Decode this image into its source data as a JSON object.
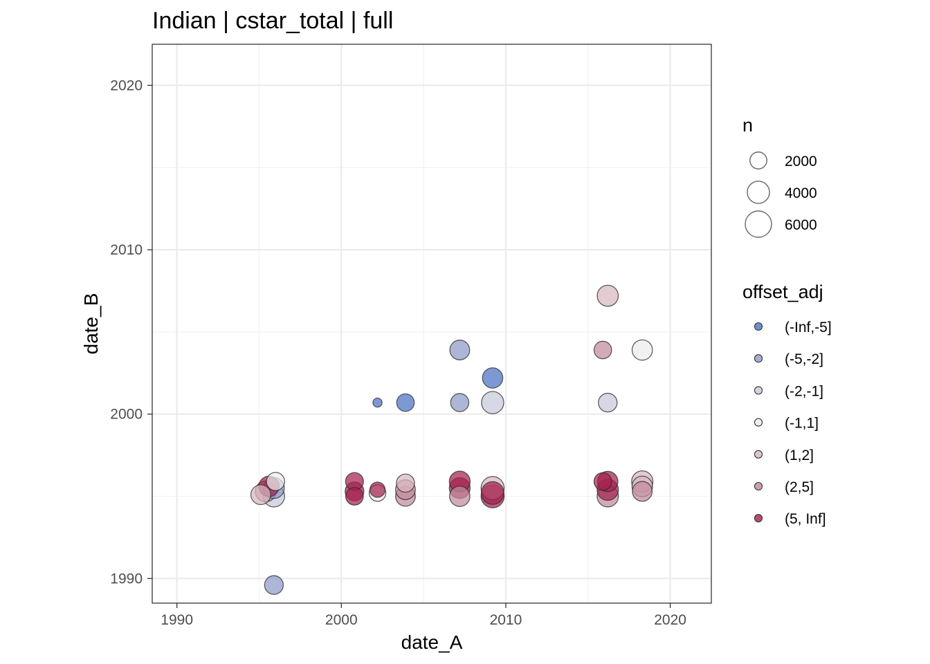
{
  "chart_data": {
    "type": "scatter",
    "title": "Indian | cstar_total | full",
    "xlabel": "date_A",
    "ylabel": "date_B",
    "xlim": [
      1988.5,
      2022.5
    ],
    "ylim": [
      1988.5,
      2022.5
    ],
    "x_ticks": [
      1990,
      2000,
      2010,
      2020
    ],
    "y_ticks": [
      1990,
      2000,
      2010,
      2020
    ],
    "x_tick_labels": [
      "1990",
      "2000",
      "2010",
      "2020"
    ],
    "y_tick_labels": [
      "1990",
      "2000",
      "2010",
      "2020"
    ],
    "grid": true,
    "legend_placement": "right",
    "size_legend": {
      "title": "n",
      "entries": [
        {
          "label": "2000",
          "value": 2000
        },
        {
          "label": "4000",
          "value": 4000
        },
        {
          "label": "6000",
          "value": 6000
        }
      ]
    },
    "color_legend": {
      "title": "offset_adj",
      "entries": [
        {
          "label": "(-Inf,-5]",
          "color": "#4b72c3"
        },
        {
          "label": "(-5,-2]",
          "color": "#8f9ac7"
        },
        {
          "label": "(-2,-1]",
          "color": "#c6cadb"
        },
        {
          "label": "(-1,1]",
          "color": "#ebebeb"
        },
        {
          "label": "(1,2]",
          "color": "#d8b7c0"
        },
        {
          "label": "(2,5]",
          "color": "#c28a9c"
        },
        {
          "label": "(5, Inf]",
          "color": "#a3214f"
        }
      ]
    },
    "points": [
      {
        "x": 1995.1,
        "y": 1995.1,
        "n": 3000,
        "cls": "(1,2]"
      },
      {
        "x": 1995.4,
        "y": 1995.3,
        "n": 3400,
        "cls": "(2,5]"
      },
      {
        "x": 1995.6,
        "y": 1995.6,
        "n": 3200,
        "cls": "(5, Inf]"
      },
      {
        "x": 1995.9,
        "y": 1995.0,
        "n": 3600,
        "cls": "(-2,-1]"
      },
      {
        "x": 1995.9,
        "y": 1995.5,
        "n": 3400,
        "cls": "(-5,-2]"
      },
      {
        "x": 1996.0,
        "y": 1995.9,
        "n": 2400,
        "cls": "(-1,1]"
      },
      {
        "x": 1995.9,
        "y": 1989.6,
        "n": 2600,
        "cls": "(-5,-2]"
      },
      {
        "x": 2000.8,
        "y": 1995.0,
        "n": 2200,
        "cls": "(5, Inf]"
      },
      {
        "x": 2000.8,
        "y": 1995.3,
        "n": 2600,
        "cls": "(5, Inf]"
      },
      {
        "x": 2000.8,
        "y": 1995.9,
        "n": 2300,
        "cls": "(5, Inf]"
      },
      {
        "x": 2002.2,
        "y": 1995.2,
        "n": 1900,
        "cls": "(-1,1]"
      },
      {
        "x": 2002.2,
        "y": 1995.4,
        "n": 1500,
        "cls": "(5, Inf]"
      },
      {
        "x": 2002.2,
        "y": 2000.7,
        "n": 300,
        "cls": "(-Inf,-5]"
      },
      {
        "x": 2003.9,
        "y": 1995.0,
        "n": 3000,
        "cls": "(2,5]"
      },
      {
        "x": 2003.9,
        "y": 1995.4,
        "n": 3000,
        "cls": "(2,5]"
      },
      {
        "x": 2003.9,
        "y": 1995.8,
        "n": 2400,
        "cls": "(1,2]"
      },
      {
        "x": 2003.9,
        "y": 2000.7,
        "n": 2200,
        "cls": "(-Inf,-5]"
      },
      {
        "x": 2007.2,
        "y": 1995.0,
        "n": 3200,
        "cls": "(2,5]"
      },
      {
        "x": 2007.2,
        "y": 1995.5,
        "n": 3400,
        "cls": "(5, Inf]"
      },
      {
        "x": 2007.2,
        "y": 1995.9,
        "n": 3400,
        "cls": "(5, Inf]"
      },
      {
        "x": 2007.2,
        "y": 2000.7,
        "n": 2400,
        "cls": "(-5,-2]"
      },
      {
        "x": 2007.2,
        "y": 2003.9,
        "n": 3000,
        "cls": "(-5,-2]"
      },
      {
        "x": 2009.2,
        "y": 1995.0,
        "n": 4400,
        "cls": "(5, Inf]"
      },
      {
        "x": 2009.2,
        "y": 1995.5,
        "n": 4400,
        "cls": "(1,2]"
      },
      {
        "x": 2009.2,
        "y": 1995.2,
        "n": 4200,
        "cls": "(5, Inf]"
      },
      {
        "x": 2009.2,
        "y": 2002.2,
        "n": 3200,
        "cls": "(-Inf,-5]"
      },
      {
        "x": 2009.2,
        "y": 2000.7,
        "n": 4000,
        "cls": "(-2,-1]"
      },
      {
        "x": 2015.9,
        "y": 1995.9,
        "n": 2200,
        "cls": "(5, Inf]"
      },
      {
        "x": 2015.9,
        "y": 2003.9,
        "n": 2200,
        "cls": "(2,5]"
      },
      {
        "x": 2016.2,
        "y": 1995.0,
        "n": 3600,
        "cls": "(2,5]"
      },
      {
        "x": 2016.2,
        "y": 1995.4,
        "n": 3600,
        "cls": "(5, Inf]"
      },
      {
        "x": 2016.2,
        "y": 1995.9,
        "n": 3200,
        "cls": "(5, Inf]"
      },
      {
        "x": 2016.2,
        "y": 2000.7,
        "n": 2600,
        "cls": "(-2,-1]"
      },
      {
        "x": 2016.2,
        "y": 2007.2,
        "n": 3500,
        "cls": "(1,2]"
      },
      {
        "x": 2018.3,
        "y": 1995.3,
        "n": 3000,
        "cls": "(2,5]"
      },
      {
        "x": 2018.3,
        "y": 1995.6,
        "n": 3300,
        "cls": "(1,2]"
      },
      {
        "x": 2018.3,
        "y": 1995.9,
        "n": 3600,
        "cls": "(1,2]"
      },
      {
        "x": 2018.3,
        "y": 2003.9,
        "n": 3200,
        "cls": "(-1,1]"
      }
    ]
  }
}
